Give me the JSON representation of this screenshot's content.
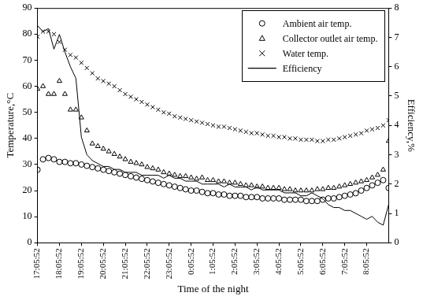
{
  "chart_data": {
    "type": "line",
    "x_label": "Time of the night",
    "y_label": "Temperature,°C",
    "y2_label": "Efficiency,%",
    "categories": [
      "17:05:52",
      null,
      null,
      null,
      "18:05:52",
      null,
      null,
      null,
      "19:05:52",
      null,
      null,
      null,
      "20:05:52",
      null,
      null,
      null,
      "21:05:52",
      null,
      null,
      null,
      "22:05:52",
      null,
      null,
      null,
      "23:05:52",
      null,
      null,
      null,
      "0:05:52",
      null,
      null,
      null,
      "1:05:52",
      null,
      null,
      null,
      "2:05:52",
      null,
      null,
      null,
      "3:05:52",
      null,
      null,
      null,
      "4:05:52",
      null,
      null,
      null,
      "5:05:52",
      null,
      null,
      null,
      "6:05:52",
      null,
      null,
      null,
      "7:05:52",
      null,
      null,
      null,
      "8:05:52",
      null,
      null,
      null,
      null
    ],
    "series": [
      {
        "name": "Ambient air temp.",
        "color": "#000000",
        "marker": "circle",
        "line_style": "none",
        "values": [
          28,
          32,
          32.5,
          32,
          31,
          31,
          30.5,
          30.5,
          30,
          29.5,
          29,
          28.5,
          28,
          27.5,
          27,
          26.5,
          26,
          25.5,
          25,
          24.5,
          24,
          23.5,
          23,
          22.5,
          22,
          21.5,
          21,
          20.5,
          20,
          20,
          19.5,
          19,
          19,
          18.5,
          18.5,
          18,
          18,
          18,
          17.5,
          17.5,
          17.5,
          17,
          17,
          17,
          17,
          16.5,
          16.5,
          16.5,
          16.5,
          16,
          16,
          16,
          16.5,
          17,
          17,
          17.5,
          18,
          18.5,
          19,
          20,
          21,
          22,
          23,
          24,
          21
        ]
      },
      {
        "name": "Collector outlet air temp.",
        "color": "#000000",
        "marker": "triangle",
        "line_style": "none",
        "values": [
          59,
          60,
          57,
          57,
          62,
          57,
          51,
          51,
          48,
          43,
          38,
          37,
          36,
          35,
          34,
          33,
          32,
          31,
          30.5,
          30,
          29,
          28.5,
          28,
          27,
          26.5,
          26,
          25.5,
          25.5,
          25,
          24.5,
          25,
          24,
          24,
          23.5,
          23.5,
          23,
          23,
          22.5,
          22,
          22,
          21.5,
          21.5,
          21,
          21,
          21,
          20.5,
          20.5,
          20,
          20,
          20,
          20,
          20.5,
          20.5,
          21,
          21,
          21.5,
          22,
          22.5,
          23,
          23.5,
          24,
          25,
          26,
          28,
          39
        ]
      },
      {
        "name": "Water temp.",
        "color": "#000000",
        "marker": "x",
        "line_style": "none",
        "values": [
          79,
          81,
          81,
          80,
          77,
          74,
          72,
          71,
          69,
          67,
          65,
          63,
          62,
          61,
          60,
          58.5,
          57,
          56,
          55,
          54,
          53,
          52,
          51,
          50,
          49.5,
          48.5,
          48,
          47.5,
          47,
          46.5,
          46,
          45.5,
          45,
          44.5,
          44.5,
          44,
          43.5,
          43,
          42.5,
          42,
          42,
          41.5,
          41,
          41,
          40.5,
          40.5,
          40,
          40,
          39.5,
          39.5,
          39.5,
          39,
          39,
          39.5,
          39.5,
          40,
          40.5,
          41,
          41.5,
          42,
          43,
          43.5,
          44,
          45,
          47
        ]
      },
      {
        "name": "Efficiency",
        "color": "#000000",
        "marker": "none",
        "line_style": "solid",
        "axis": "y2",
        "values": [
          7.4,
          7.2,
          7.3,
          6.6,
          7.1,
          6.5,
          6.0,
          5.6,
          3.6,
          3.0,
          2.8,
          2.7,
          2.6,
          2.6,
          2.5,
          2.5,
          2.4,
          2.4,
          2.4,
          2.3,
          2.3,
          2.3,
          2.3,
          2.2,
          2.3,
          2.2,
          2.2,
          2.1,
          2.1,
          2.1,
          2.0,
          2.0,
          2.0,
          2.0,
          1.9,
          2.0,
          1.9,
          1.9,
          1.9,
          1.8,
          1.9,
          1.8,
          1.8,
          1.8,
          1.8,
          1.7,
          1.7,
          1.7,
          1.6,
          1.6,
          1.7,
          1.6,
          1.5,
          1.3,
          1.2,
          1.2,
          1.1,
          1.1,
          1.0,
          0.9,
          0.8,
          0.9,
          0.7,
          0.6,
          1.3
        ]
      }
    ],
    "ylim": [
      0,
      90
    ],
    "yticks": [
      0,
      10,
      20,
      30,
      40,
      50,
      60,
      70,
      80,
      90
    ],
    "y2lim": [
      0,
      8
    ],
    "y2ticks": [
      0,
      1,
      2,
      3,
      4,
      5,
      6,
      7,
      8
    ],
    "grid": false,
    "legend": "upper right"
  }
}
